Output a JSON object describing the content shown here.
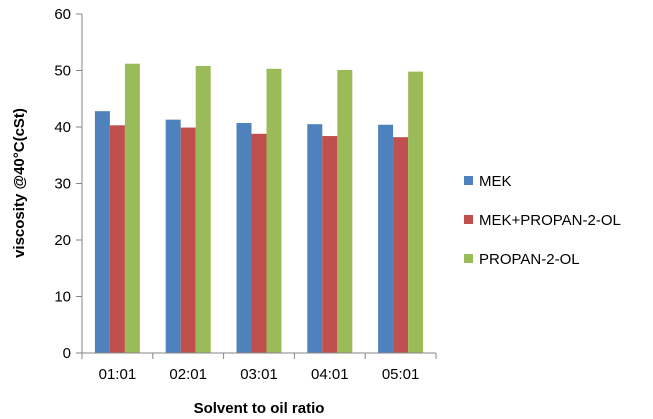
{
  "chart_data": {
    "type": "bar",
    "title": "",
    "xlabel": "Solvent to oil ratio",
    "ylabel": "viscosity @40°C(cSt)",
    "categories": [
      "01:01",
      "02:01",
      "03:01",
      "04:01",
      "05:01"
    ],
    "ylim": [
      0,
      60
    ],
    "yticks": [
      0,
      10,
      20,
      30,
      40,
      50,
      60
    ],
    "grid": false,
    "legend_position": "right",
    "series": [
      {
        "name": "MEK",
        "color": "#4f81bd",
        "values": [
          42.8,
          41.3,
          40.7,
          40.5,
          40.4
        ]
      },
      {
        "name": "MEK+PROPAN-2-OL",
        "color": "#c0504d",
        "values": [
          40.3,
          39.9,
          38.8,
          38.4,
          38.2
        ]
      },
      {
        "name": "PROPAN-2-OL",
        "color": "#9bbb59",
        "values": [
          51.2,
          50.8,
          50.3,
          50.1,
          49.8
        ]
      }
    ]
  }
}
